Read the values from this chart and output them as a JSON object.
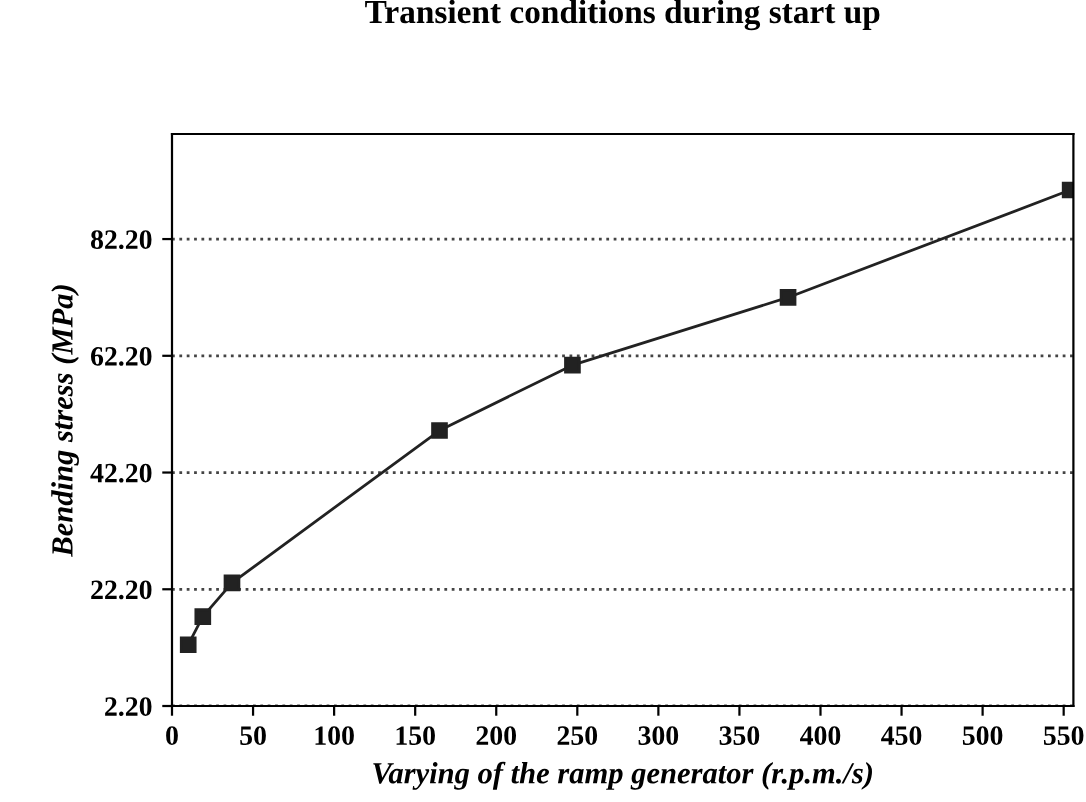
{
  "chart_data": {
    "type": "line",
    "title": "Transient conditions during start up",
    "xlabel": "Varying of the ramp generator (r.p.m./s)",
    "ylabel": "Bending stress (MPa)",
    "x": [
      10,
      19,
      37,
      165,
      247,
      380,
      554
    ],
    "series": [
      {
        "color": "#222222",
        "values": [
          12.7,
          17.5,
          23.3,
          49.4,
          60.6,
          72.2,
          90.6
        ]
      }
    ],
    "xlim": [
      0,
      556
    ],
    "ylim": [
      2.2,
      100.2
    ],
    "xticks": [
      0,
      50,
      100,
      150,
      200,
      250,
      300,
      350,
      400,
      450,
      500,
      550
    ],
    "yticks": [
      {
        "value": 2.2,
        "label": "2.20"
      },
      {
        "value": 22.2,
        "label": "22.20"
      },
      {
        "value": 42.2,
        "label": "42.20"
      },
      {
        "value": 62.2,
        "label": "62.20"
      },
      {
        "value": 82.2,
        "label": "82.20"
      }
    ],
    "grid": "y",
    "marker": "square",
    "line_style": "solid"
  }
}
